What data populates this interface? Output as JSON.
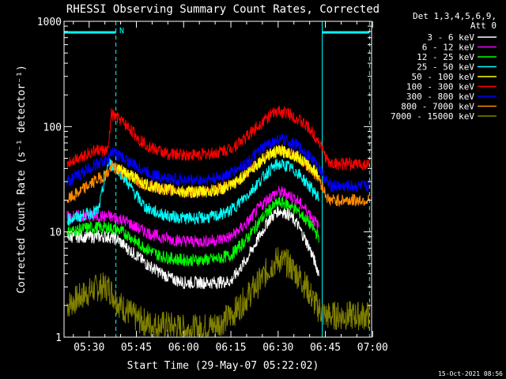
{
  "chart_data": {
    "type": "line",
    "title": "RHESSI Observing Summary Count Rates, Corrected",
    "xlabel": "Start Time (29-May-07 05:22:02)",
    "ylabel": "Corrected Count Rate (s⁻¹ detector⁻¹)",
    "y_scale": "log",
    "ylim": [
      1,
      1000
    ],
    "xlim": [
      "05:22:02",
      "06:59:40"
    ],
    "x_ticks": [
      "05:30",
      "05:45",
      "06:00",
      "06:15",
      "06:30",
      "06:45",
      "07:00"
    ],
    "y_ticks": [
      "1",
      "10",
      "100",
      "1000"
    ],
    "grid": false,
    "legend_header": [
      "Det 1,3,4,5,6,9,",
      "Att 0"
    ],
    "legend_placement": "right",
    "timestamp": "15-Oct-2021 08:56",
    "annotation_N": "N",
    "night_periods": [
      [
        "05:22:02",
        "05:38:30"
      ],
      [
        "06:44:00",
        "06:59:00"
      ]
    ],
    "series": [
      {
        "name": "3 - 6 keV",
        "color": "#ffffff",
        "x": [
          "05:23",
          "05:27",
          "05:30",
          "05:33",
          "05:36",
          "05:39",
          "05:42",
          "05:45",
          "05:48",
          "05:52",
          "05:56",
          "06:00",
          "06:05",
          "06:10",
          "06:15",
          "06:20",
          "06:24",
          "06:27",
          "06:30",
          "06:33",
          "06:36",
          "06:40",
          "06:43"
        ],
        "values": [
          9,
          9,
          9,
          9,
          9,
          8.5,
          7,
          6,
          5,
          4.2,
          3.6,
          3.3,
          3.3,
          3.3,
          3.4,
          5.5,
          9,
          13,
          16,
          15,
          12,
          7,
          4
        ]
      },
      {
        "name": "6 - 12 keV",
        "color": "#ff00ff",
        "x": [
          "05:23",
          "05:27",
          "05:30",
          "05:33",
          "05:36",
          "05:39",
          "05:42",
          "05:45",
          "05:48",
          "05:52",
          "05:56",
          "06:00",
          "06:05",
          "06:10",
          "06:15",
          "06:20",
          "06:24",
          "06:27",
          "06:30",
          "06:33",
          "06:36",
          "06:40",
          "06:43"
        ],
        "values": [
          14,
          14,
          14,
          14,
          14,
          13.5,
          12.5,
          11,
          10,
          9,
          8.5,
          8.2,
          8.1,
          8.3,
          9,
          12,
          17,
          21,
          24,
          23,
          20,
          15,
          11
        ]
      },
      {
        "name": "12 - 25 keV",
        "color": "#00ff00",
        "x": [
          "05:23",
          "05:27",
          "05:30",
          "05:33",
          "05:36",
          "05:39",
          "05:42",
          "05:45",
          "05:48",
          "05:52",
          "05:56",
          "06:00",
          "06:05",
          "06:10",
          "06:15",
          "06:20",
          "06:24",
          "06:27",
          "06:30",
          "06:33",
          "06:36",
          "06:40",
          "06:43"
        ],
        "values": [
          10,
          10.5,
          11,
          11,
          11,
          10.5,
          9.5,
          8,
          7,
          6,
          5.6,
          5.4,
          5.4,
          5.5,
          6,
          8.5,
          12.5,
          16,
          19,
          18.5,
          16,
          12,
          9
        ]
      },
      {
        "name": "25 - 50 keV",
        "color": "#00ffff",
        "x": [
          "05:23",
          "05:27",
          "05:30",
          "05:33",
          "05:36",
          "05:39",
          "05:42",
          "05:45",
          "05:48",
          "05:52",
          "05:56",
          "06:00",
          "06:05",
          "06:10",
          "06:15",
          "06:20",
          "06:24",
          "06:27",
          "06:30",
          "06:33",
          "06:36",
          "06:40",
          "06:43"
        ],
        "values": [
          13,
          14,
          15,
          16,
          45,
          40,
          30,
          22,
          17,
          15,
          14,
          13.5,
          13.5,
          14,
          16,
          22,
          30,
          38,
          44,
          42,
          37,
          27,
          21
        ]
      },
      {
        "name": "50 - 100 keV",
        "color": "#ffff00",
        "x": [
          "05:39",
          "05:42",
          "05:45",
          "05:48",
          "05:52",
          "05:56",
          "06:00",
          "06:05",
          "06:10",
          "06:15",
          "06:20",
          "06:24",
          "06:27",
          "06:30",
          "06:33",
          "06:36",
          "06:40",
          "06:43"
        ],
        "values": [
          40,
          36,
          32,
          28,
          26,
          25,
          24,
          24,
          24.5,
          27,
          36,
          46,
          54,
          58,
          57,
          52,
          42,
          35
        ]
      },
      {
        "name": "100 - 300 keV",
        "color": "#ff0000",
        "x": [
          "05:23",
          "05:27",
          "05:30",
          "05:33",
          "05:36",
          "05:37",
          "05:40",
          "05:43",
          "05:46",
          "05:50",
          "05:55",
          "06:00",
          "06:05",
          "06:10",
          "06:15",
          "06:20",
          "06:24",
          "06:27",
          "06:30",
          "06:33",
          "06:36",
          "06:40",
          "06:43",
          "06:46",
          "06:50",
          "06:55",
          "06:59"
        ],
        "values": [
          45,
          52,
          56,
          60,
          58,
          130,
          115,
          95,
          75,
          62,
          55,
          54,
          54,
          56,
          62,
          80,
          105,
          125,
          140,
          135,
          120,
          95,
          72,
          45,
          44,
          44,
          44
        ]
      },
      {
        "name": "300 - 800 keV",
        "color": "#0000ff",
        "x": [
          "05:23",
          "05:27",
          "05:30",
          "05:33",
          "05:36",
          "05:37",
          "05:40",
          "05:43",
          "05:46",
          "05:50",
          "05:55",
          "06:00",
          "06:05",
          "06:10",
          "06:15",
          "06:20",
          "06:24",
          "06:27",
          "06:30",
          "06:33",
          "06:36",
          "06:40",
          "06:43",
          "06:46",
          "06:50",
          "06:55",
          "06:59"
        ],
        "values": [
          30,
          35,
          40,
          45,
          48,
          58,
          52,
          46,
          40,
          35,
          32,
          31,
          31,
          32,
          36,
          45,
          58,
          68,
          75,
          73,
          66,
          52,
          41,
          28,
          27,
          27,
          27
        ]
      },
      {
        "name": "800 - 7000 keV",
        "color": "#ff8c00",
        "x": [
          "05:23",
          "05:27",
          "05:30",
          "05:33",
          "05:36",
          "05:37",
          "05:40",
          "05:43",
          "05:46",
          "05:50",
          "05:55",
          "06:00",
          "06:05",
          "06:10",
          "06:15",
          "06:20",
          "06:24",
          "06:27",
          "06:30",
          "06:33",
          "06:36",
          "06:40",
          "06:43",
          "06:46",
          "06:50",
          "06:55",
          "06:59"
        ],
        "values": [
          20,
          24,
          28,
          32,
          36,
          42,
          38,
          34,
          30,
          27,
          25,
          24,
          24,
          25,
          28,
          36,
          46,
          54,
          60,
          58,
          52,
          41,
          32,
          20,
          20,
          20,
          20
        ]
      },
      {
        "name": "7000 - 15000 keV",
        "color": "#808000",
        "x": [
          "05:23",
          "05:28",
          "05:33",
          "05:36",
          "05:40",
          "05:45",
          "05:50",
          "05:55",
          "06:00",
          "06:05",
          "06:10",
          "06:15",
          "06:18",
          "06:21",
          "06:24",
          "06:27",
          "06:30",
          "06:33",
          "06:36",
          "06:39",
          "06:42",
          "06:45",
          "06:50",
          "06:55",
          "06:59"
        ],
        "values": [
          2,
          2.5,
          3,
          3,
          2,
          1.5,
          1.3,
          1.3,
          1.2,
          1.2,
          1.3,
          1.6,
          2,
          2.6,
          3.3,
          4.5,
          5.5,
          5,
          4,
          3,
          2,
          1.6,
          1.6,
          1.6,
          1.6
        ]
      }
    ]
  }
}
